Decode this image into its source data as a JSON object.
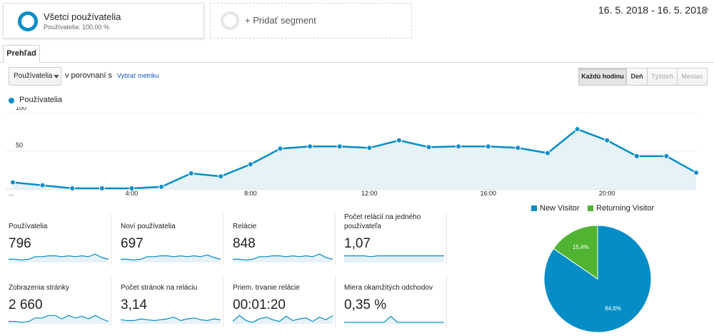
{
  "segments": {
    "active": {
      "title": "Všetci používatelia",
      "subtitle": "Používatelia: 100,00 %"
    },
    "add_label": "+ Pridať segment"
  },
  "date_range": "16. 5. 2018 - 16. 5. 2018",
  "tabs": [
    "Prehľad"
  ],
  "controls": {
    "metric": "Používatelia",
    "compare_text": "v porovnaní s",
    "choose_metric": "Vybrať metriku",
    "granularity": [
      {
        "label": "Každú hodinu",
        "state": "selected"
      },
      {
        "label": "Deň",
        "state": "enabled"
      },
      {
        "label": "Týždeň",
        "state": "disabled"
      },
      {
        "label": "Mesiac",
        "state": "disabled"
      }
    ]
  },
  "chart_data": [
    {
      "type": "area",
      "legend": [
        "Používatelia"
      ],
      "color": "#058dc7",
      "fill": "#e6f1f8",
      "ylim": [
        0,
        100
      ],
      "y_ticks": [
        "100",
        "50"
      ],
      "x_ticks": [
        {
          "hour": 0,
          "label": "..."
        },
        {
          "hour": 4,
          "label": "4:00"
        },
        {
          "hour": 8,
          "label": "8:00"
        },
        {
          "hour": 12,
          "label": "12:00"
        },
        {
          "hour": 16,
          "label": "16:00"
        },
        {
          "hour": 20,
          "label": "20:00"
        }
      ],
      "x": [
        0,
        1,
        2,
        3,
        4,
        5,
        6,
        7,
        8,
        9,
        10,
        11,
        12,
        13,
        14,
        15,
        16,
        17,
        18,
        19,
        20,
        21,
        22,
        23
      ],
      "series": [
        {
          "name": "Používatelia",
          "values": [
            8,
            4,
            0,
            0,
            0,
            2,
            20,
            16,
            32,
            53,
            56,
            56,
            54,
            64,
            55,
            56,
            56,
            54,
            47,
            79,
            64,
            43,
            43,
            21
          ]
        }
      ]
    },
    {
      "type": "pie",
      "legend_position": "top",
      "slices": [
        {
          "name": "New Visitor",
          "value": 84.6,
          "label": "84,6%",
          "color": "#058dc7"
        },
        {
          "name": "Returning Visitor",
          "value": 15.4,
          "label": "15,4%",
          "color": "#50b432"
        }
      ]
    }
  ],
  "metrics": [
    {
      "label": "Používatelia",
      "value": "796",
      "spark": [
        3,
        3,
        2,
        3,
        6,
        6,
        7,
        7,
        6,
        7,
        6,
        7,
        6,
        9,
        5,
        3
      ]
    },
    {
      "label": "Noví používatelia",
      "value": "697",
      "spark": [
        3,
        3,
        2,
        3,
        6,
        6,
        7,
        7,
        6,
        7,
        6,
        7,
        6,
        8,
        5,
        3
      ]
    },
    {
      "label": "Relácie",
      "value": "848",
      "spark": [
        3,
        3,
        2,
        3,
        6,
        6,
        7,
        7,
        6,
        7,
        6,
        7,
        6,
        9,
        5,
        3
      ]
    },
    {
      "label": "Počet relácií na jedného používateľa",
      "value": "1,07",
      "spark": [
        7,
        7,
        7,
        7,
        6,
        7,
        7,
        7,
        7,
        7,
        7,
        7,
        7,
        7,
        7,
        7
      ]
    },
    {
      "label": "Zobrazenia stránky",
      "value": "2 660",
      "spark": [
        2,
        2,
        1,
        2,
        6,
        6,
        9,
        9,
        5,
        9,
        6,
        8,
        5,
        9,
        5,
        2
      ]
    },
    {
      "label": "Počet stránok na reláciu",
      "value": "3,14",
      "spark": [
        4,
        3,
        3,
        5,
        4,
        3,
        4,
        5,
        7,
        3,
        5,
        6,
        4,
        3,
        5,
        4
      ]
    },
    {
      "label": "Priem. trvanie relácie",
      "value": "00:01:20",
      "spark": [
        2,
        9,
        3,
        1,
        5,
        7,
        4,
        2,
        8,
        3,
        5,
        6,
        2,
        7,
        4,
        9
      ]
    },
    {
      "label": "Miera okamžitých odchodov",
      "value": "0,35 %",
      "spark": [
        1,
        1,
        1,
        1,
        1,
        1,
        1,
        8,
        1,
        1,
        1,
        1,
        1,
        1,
        1,
        1
      ]
    }
  ]
}
